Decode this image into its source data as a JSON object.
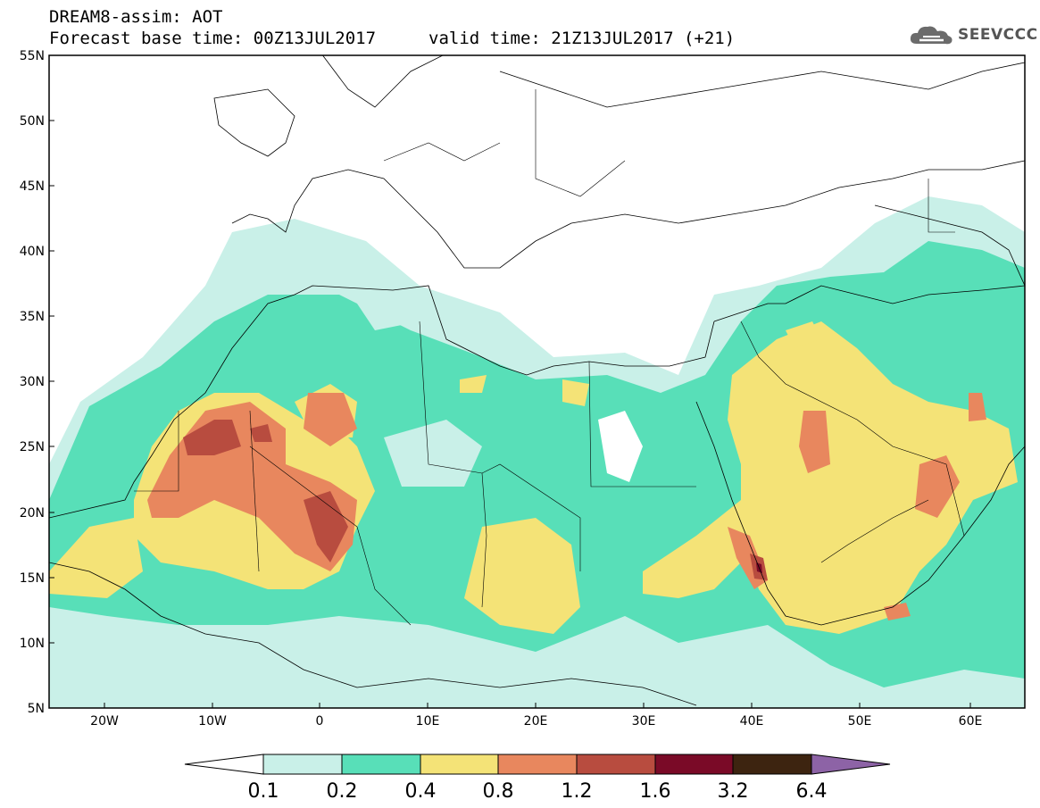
{
  "header": {
    "product": "DREAM8-assim: AOT",
    "base_time": "Forecast base time: 00Z13JUL2017",
    "valid_time": "valid time: 21Z13JUL2017 (+21)",
    "logo": "SEEVCCC",
    "logo_icon": "cloud-icon"
  },
  "map": {
    "lat_labels": [
      "55N",
      "50N",
      "45N",
      "40N",
      "35N",
      "30N",
      "25N",
      "20N",
      "15N",
      "10N",
      "5N"
    ],
    "lon_labels": [
      "20W",
      "10W",
      "0",
      "10E",
      "20E",
      "30E",
      "40E",
      "50E",
      "60E"
    ]
  },
  "colorbar": {
    "labels": [
      "0.1",
      "0.2",
      "0.4",
      "0.8",
      "1.2",
      "1.6",
      "3.2",
      "6.4"
    ],
    "colors": [
      "#ffffff",
      "#c9f0e8",
      "#58dfb8",
      "#f4e377",
      "#e8875e",
      "#b84c3f",
      "#7a0a27",
      "#3d2410",
      "#8d63a6"
    ]
  }
}
